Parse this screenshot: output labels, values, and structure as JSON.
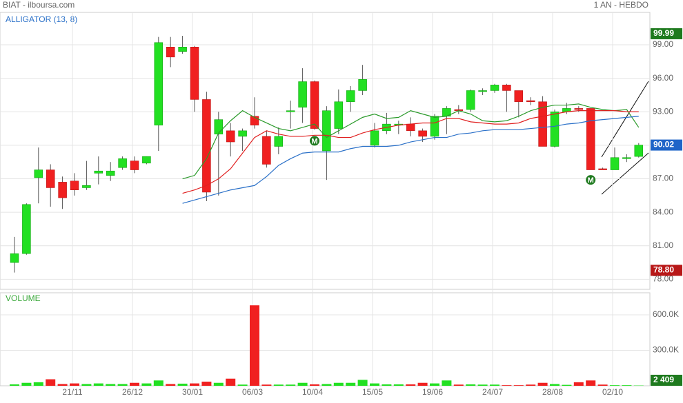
{
  "chart_data": [
    {
      "type": "candlestick",
      "title": "BIAT - ilboursa.com",
      "subtitle": "1 AN - HEBDO",
      "indicator": "ALLIGATOR (13, 8)",
      "categories": [
        null,
        null,
        null,
        null,
        null,
        "21/11",
        null,
        null,
        null,
        null,
        "26/12",
        null,
        null,
        null,
        null,
        "30/01",
        null,
        null,
        null,
        null,
        "06/03",
        null,
        null,
        null,
        null,
        "10/04",
        null,
        null,
        null,
        null,
        "15/05",
        null,
        null,
        null,
        null,
        "19/06",
        null,
        null,
        null,
        null,
        "24/07",
        null,
        null,
        null,
        null,
        "28/08",
        null,
        null,
        null,
        null,
        "02/10",
        null,
        null
      ],
      "open": [
        79.5,
        80.3,
        87.1,
        87.8,
        86.7,
        86.8,
        86.2,
        87.5,
        87.3,
        88.0,
        88.6,
        88.4,
        91.8,
        98.8,
        98.4,
        98.8,
        94.1,
        91.0,
        91.3,
        90.8,
        92.6,
        90.8,
        89.9,
        93.0,
        93.4,
        95.7,
        89.5,
        91.5,
        93.9,
        94.9,
        90.0,
        91.3,
        91.8,
        91.9,
        91.3,
        90.8,
        92.6,
        93.2,
        93.2,
        94.9,
        94.9,
        95.4,
        94.9,
        94.0,
        93.9,
        89.9,
        93.0,
        93.3,
        93.3,
        87.9,
        87.8,
        88.8,
        89.0
      ],
      "high": [
        81.8,
        84.8,
        89.8,
        88.3,
        87.2,
        87.5,
        88.6,
        89.0,
        88.5,
        89.0,
        89.0,
        89.0,
        99.7,
        99.7,
        99.8,
        98.9,
        94.8,
        93.0,
        92.0,
        91.5,
        94.3,
        91.3,
        91.6,
        94.0,
        96.9,
        95.8,
        93.5,
        95.0,
        95.3,
        97.2,
        92.0,
        92.9,
        92.2,
        92.5,
        91.5,
        92.8,
        93.5,
        93.6,
        95.0,
        95.1,
        95.5,
        95.5,
        94.9,
        94.3,
        94.4,
        93.2,
        93.8,
        93.5,
        93.3,
        88.0,
        89.8,
        89.2,
        90.2
      ],
      "low": [
        78.6,
        80.2,
        84.8,
        84.5,
        84.3,
        85.5,
        86.0,
        86.5,
        86.8,
        87.8,
        87.5,
        88.3,
        89.5,
        97.0,
        98.2,
        93.0,
        85.0,
        85.5,
        89.0,
        89.5,
        91.5,
        88.0,
        89.2,
        91.5,
        92.0,
        91.4,
        86.9,
        91.0,
        93.0,
        94.5,
        89.8,
        91.0,
        91.0,
        90.8,
        90.3,
        90.5,
        91.0,
        92.8,
        93.0,
        94.5,
        94.7,
        93.0,
        92.5,
        93.6,
        89.9,
        89.8,
        92.8,
        93.0,
        87.8,
        87.8,
        87.8,
        88.5,
        88.9
      ],
      "close": [
        80.3,
        84.7,
        87.8,
        86.2,
        85.3,
        86.0,
        86.4,
        87.7,
        87.7,
        88.8,
        87.8,
        89.0,
        99.2,
        97.9,
        98.8,
        94.1,
        85.8,
        92.3,
        90.3,
        91.3,
        91.8,
        88.3,
        90.8,
        93.1,
        95.7,
        91.5,
        93.1,
        93.9,
        94.9,
        95.9,
        91.3,
        91.9,
        91.9,
        91.3,
        90.8,
        92.6,
        93.3,
        93.1,
        94.9,
        94.9,
        95.4,
        94.9,
        93.9,
        93.9,
        89.9,
        93.0,
        93.3,
        93.2,
        87.8,
        87.8,
        88.9,
        88.9,
        90.02
      ],
      "up_color": "#22e022",
      "down_color": "#f02020",
      "lines": [
        {
          "color": "#2a9a2a",
          "values": [
            null,
            null,
            null,
            null,
            null,
            null,
            null,
            null,
            null,
            null,
            null,
            null,
            null,
            null,
            87.0,
            87.3,
            88.8,
            91.1,
            92.2,
            93.1,
            92.5,
            92.0,
            91.5,
            91.3,
            91.6,
            91.9,
            90.7,
            91.3,
            91.9,
            92.5,
            92.8,
            92.4,
            92.5,
            93.1,
            92.8,
            92.5,
            92.6,
            93.1,
            92.8,
            92.2,
            92.1,
            92.2,
            92.6,
            93.1,
            93.4,
            93.6,
            93.6,
            93.7,
            93.4,
            93.2,
            93.1,
            93.2,
            91.6
          ]
        },
        {
          "color": "#e02020",
          "values": [
            null,
            null,
            null,
            null,
            null,
            null,
            null,
            null,
            null,
            null,
            null,
            null,
            null,
            null,
            85.7,
            86.0,
            86.4,
            87.0,
            87.9,
            89.3,
            90.7,
            91.3,
            91.0,
            90.8,
            90.8,
            90.9,
            90.9,
            90.7,
            90.7,
            91.1,
            91.4,
            91.6,
            91.8,
            91.9,
            92.0,
            92.0,
            92.4,
            92.4,
            92.1,
            92.0,
            91.9,
            91.9,
            92.0,
            92.4,
            92.6,
            92.8,
            93.0,
            93.1,
            93.1,
            93.1,
            93.1,
            93.0,
            93.0
          ]
        },
        {
          "color": "#2a70c8",
          "values": [
            null,
            null,
            null,
            null,
            null,
            null,
            null,
            null,
            null,
            null,
            null,
            null,
            null,
            null,
            84.8,
            85.1,
            85.4,
            85.7,
            86.0,
            86.2,
            86.4,
            87.2,
            88.2,
            88.8,
            89.3,
            89.4,
            89.4,
            89.4,
            89.7,
            89.9,
            89.9,
            89.9,
            90.0,
            90.3,
            90.5,
            90.7,
            90.7,
            91.0,
            91.1,
            91.3,
            91.4,
            91.4,
            91.4,
            91.5,
            91.6,
            91.7,
            91.9,
            92.0,
            92.2,
            92.3,
            92.4,
            92.5,
            92.6
          ]
        }
      ],
      "annotations": [
        {
          "text": "M",
          "x": 25,
          "y": 90.4
        },
        {
          "text": "M",
          "x": 48,
          "y": 86.9
        }
      ],
      "price_badges": [
        {
          "value": 99.99,
          "color": "#1e7a1e"
        },
        {
          "value": 90.02,
          "color": "#1e64c8"
        },
        {
          "value": 78.8,
          "label": "78.80",
          "color": "#b81818"
        }
      ],
      "ylim": [
        77.1,
        101.9
      ],
      "yticks": [
        {
          "value": 78,
          "label": "78.00"
        },
        {
          "value": 81,
          "label": "81.00"
        },
        {
          "value": 84,
          "label": "84.00"
        },
        {
          "value": 87,
          "label": "87.00"
        },
        {
          "value": 90,
          "label": "90.00"
        },
        {
          "value": 93,
          "label": "93.00"
        },
        {
          "value": 96,
          "label": "96.00"
        },
        {
          "value": 99,
          "label": "99.00"
        }
      ],
      "grid": true
    },
    {
      "type": "bar",
      "title": "VOLUME",
      "values": [
        12000,
        25000,
        30000,
        55000,
        15000,
        20000,
        15000,
        20000,
        15000,
        15000,
        25000,
        20000,
        45000,
        15000,
        18000,
        20000,
        35000,
        25000,
        60000,
        10000,
        680000,
        10000,
        10000,
        10000,
        25000,
        12000,
        15000,
        25000,
        25000,
        50000,
        20000,
        12000,
        12000,
        12000,
        25000,
        20000,
        45000,
        10000,
        12000,
        10000,
        10000,
        5000,
        5000,
        10000,
        25000,
        15000,
        8000,
        30000,
        45000,
        10000,
        5000,
        5000,
        2409
      ],
      "last_badge": {
        "value": 2409,
        "label": "2 409",
        "color": "#1e7a1e"
      },
      "ylim": [
        0,
        786000
      ],
      "yticks": [
        {
          "value": 300000,
          "label": "300.0K"
        },
        {
          "value": 600000,
          "label": "600.0K"
        }
      ],
      "grid": true
    }
  ]
}
